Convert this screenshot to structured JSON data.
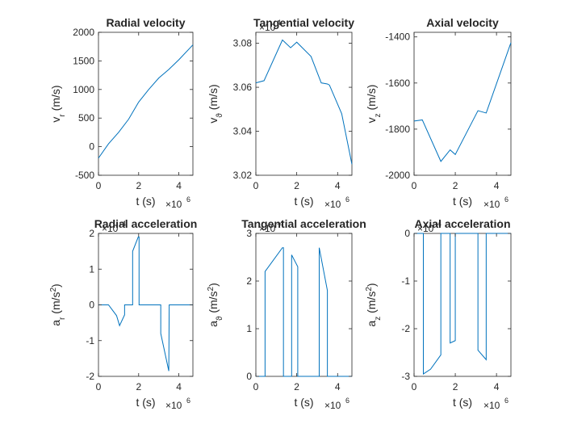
{
  "chart_data": [
    {
      "type": "line",
      "title": "Radial velocity",
      "xlabel": "t (s)",
      "ylabel_main": "v",
      "ylabel_sub": "r",
      "ylabel_sub_type": "sub",
      "ylabel_tail": " (m/s)",
      "xlim": [
        0,
        4.7
      ],
      "ylim": [
        -500,
        2000
      ],
      "x_exponent_label": "×10",
      "x_exponent_power": "6",
      "y_exponent_label": "",
      "y_exponent_power": "",
      "xticks": [
        0,
        2,
        4
      ],
      "yticks": [
        -500,
        0,
        500,
        1000,
        1500,
        2000
      ],
      "ytick_labels": [
        "-500",
        "0",
        "500",
        "1000",
        "1500",
        "2000"
      ],
      "x": [
        0,
        0.5,
        1.0,
        1.5,
        2.0,
        2.5,
        3.0,
        3.5,
        4.0,
        4.7
      ],
      "y": [
        -200,
        50,
        250,
        480,
        780,
        1000,
        1200,
        1350,
        1520,
        1780
      ]
    },
    {
      "type": "line",
      "title": "Tangential velocity",
      "xlabel": "t (s)",
      "ylabel_main": "v",
      "ylabel_sub": "ϑ",
      "ylabel_sub_type": "sub",
      "ylabel_tail": " (m/s)",
      "xlim": [
        0,
        4.7
      ],
      "ylim": [
        3.02,
        3.085
      ],
      "x_exponent_label": "×10",
      "x_exponent_power": "6",
      "y_exponent_label": "×10",
      "y_exponent_power": "4",
      "xticks": [
        0,
        2,
        4
      ],
      "yticks": [
        3.02,
        3.04,
        3.06,
        3.08
      ],
      "ytick_labels": [
        "3.02",
        "3.04",
        "3.06",
        "3.08"
      ],
      "x": [
        0,
        0.4,
        1.3,
        1.7,
        2.0,
        2.7,
        3.2,
        3.5,
        3.6,
        4.2,
        4.7
      ],
      "y": [
        3.062,
        3.063,
        3.0815,
        3.078,
        3.0805,
        3.074,
        3.062,
        3.0615,
        3.061,
        3.048,
        3.025
      ]
    },
    {
      "type": "line",
      "title": "Axial velocity",
      "xlabel": "t (s)",
      "ylabel_main": "v",
      "ylabel_sub": "z",
      "ylabel_sub_type": "sub",
      "ylabel_tail": " (m/s)",
      "xlim": [
        0,
        4.7
      ],
      "ylim": [
        -2000,
        -1380
      ],
      "x_exponent_label": "×10",
      "x_exponent_power": "6",
      "y_exponent_label": "",
      "y_exponent_power": "",
      "xticks": [
        0,
        2,
        4
      ],
      "yticks": [
        -2000,
        -1800,
        -1600,
        -1400
      ],
      "ytick_labels": [
        "-2000",
        "-1800",
        "-1600",
        "-1400"
      ],
      "x": [
        0,
        0.4,
        1.3,
        1.75,
        2.0,
        3.1,
        3.5,
        4.7
      ],
      "y": [
        -1765,
        -1760,
        -1940,
        -1890,
        -1910,
        -1720,
        -1730,
        -1425
      ]
    },
    {
      "type": "line",
      "title": "Radial acceleration",
      "xlabel": "t (s)",
      "ylabel_main": "a",
      "ylabel_sub": "r",
      "ylabel_sub_type": "sub",
      "ylabel_tail": " (m/s",
      "ylabel_sup": "2",
      "ylabel_close": ")",
      "xlim": [
        0,
        4.7
      ],
      "ylim": [
        -2,
        2
      ],
      "x_exponent_label": "×10",
      "x_exponent_power": "6",
      "y_exponent_label": "×10",
      "y_exponent_power": "-4",
      "xticks": [
        0,
        2,
        4
      ],
      "yticks": [
        -2,
        -1,
        0,
        1,
        2
      ],
      "ytick_labels": [
        "-2",
        "-1",
        "0",
        "1",
        "2"
      ],
      "x": [
        0,
        0.5,
        0.9,
        1.05,
        1.3,
        1.3,
        1.7,
        1.7,
        1.98,
        2.02,
        2.02,
        3.1,
        3.1,
        3.5,
        3.52,
        4.7
      ],
      "y": [
        0,
        0,
        -0.3,
        -0.58,
        -0.28,
        0,
        0,
        1.5,
        1.9,
        1.9,
        0,
        0,
        -0.8,
        -1.85,
        0,
        0
      ]
    },
    {
      "type": "line",
      "title": "Tangential acceleration",
      "xlabel": "t (s)",
      "ylabel_main": "a",
      "ylabel_sub": "ϑ",
      "ylabel_sub_type": "sub",
      "ylabel_tail": " (m/s",
      "ylabel_sup": "2",
      "ylabel_close": ")",
      "xlim": [
        0,
        4.7
      ],
      "ylim": [
        0,
        3
      ],
      "x_exponent_label": "×10",
      "x_exponent_power": "6",
      "y_exponent_label": "×10",
      "y_exponent_power": "-4",
      "xticks": [
        0,
        2,
        4
      ],
      "yticks": [
        0,
        1,
        2,
        3
      ],
      "ytick_labels": [
        "0",
        "1",
        "2",
        "3"
      ],
      "x": [
        0,
        0.45,
        0.45,
        1.3,
        1.35,
        1.35,
        1.75,
        1.75,
        2.05,
        2.05,
        3.1,
        3.1,
        3.5,
        3.5,
        4.7
      ],
      "y": [
        0,
        0,
        2.2,
        2.7,
        2.7,
        0,
        0,
        2.55,
        2.3,
        0,
        0,
        2.7,
        1.8,
        0,
        0
      ]
    },
    {
      "type": "line",
      "title": "Axial acceleration",
      "xlabel": "t (s)",
      "ylabel_main": "a",
      "ylabel_sub": "z",
      "ylabel_sub_type": "sub",
      "ylabel_tail": " (m/s",
      "ylabel_sup": "2",
      "ylabel_close": ")",
      "xlim": [
        0,
        4.7
      ],
      "ylim": [
        -3,
        0
      ],
      "x_exponent_label": "×10",
      "x_exponent_power": "6",
      "y_exponent_label": "×10",
      "y_exponent_power": "-4",
      "xticks": [
        0,
        2,
        4
      ],
      "yticks": [
        -3,
        -2,
        -1,
        0
      ],
      "ytick_labels": [
        "-3",
        "-2",
        "-1",
        "0"
      ],
      "x": [
        0,
        0.45,
        0.45,
        0.8,
        1.3,
        1.3,
        1.75,
        1.75,
        2.0,
        2.0,
        3.1,
        3.1,
        3.5,
        3.5,
        4.7
      ],
      "y": [
        0,
        0,
        -2.95,
        -2.85,
        -2.55,
        0,
        0,
        -2.3,
        -2.25,
        0,
        0,
        -2.45,
        -2.65,
        0,
        0
      ]
    }
  ],
  "colors": {
    "line": "#0072BD",
    "axis": "#262626"
  }
}
